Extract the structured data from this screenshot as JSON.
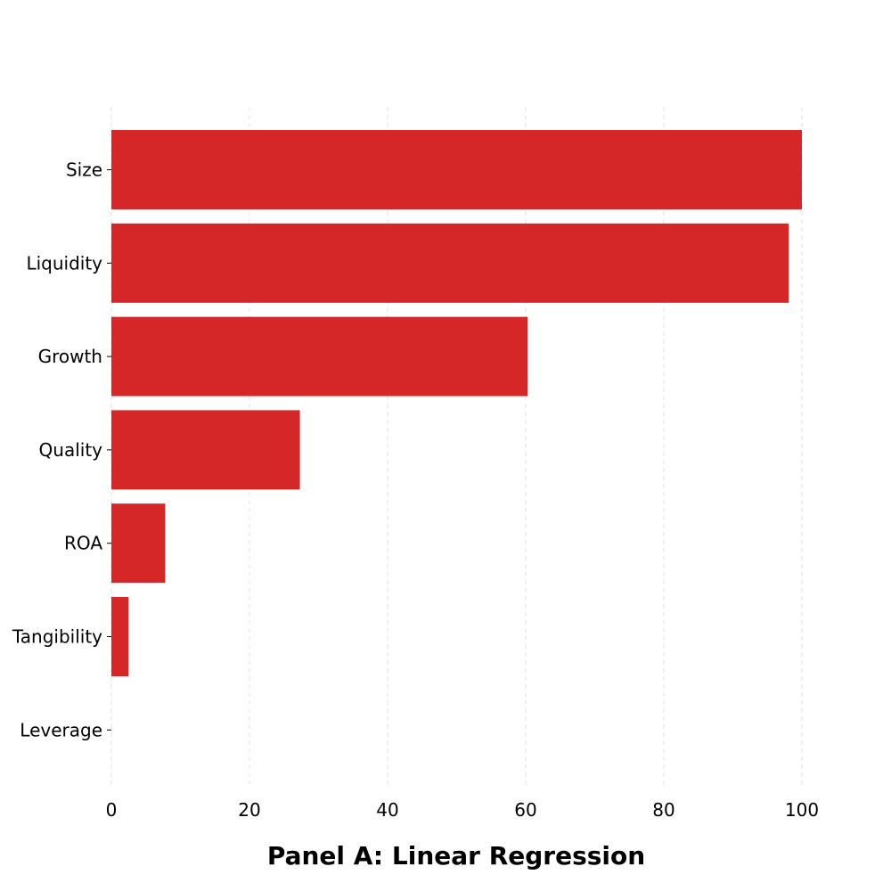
{
  "chart_data": {
    "type": "bar",
    "orientation": "horizontal",
    "title": "Panel A: Linear Regression",
    "categories": [
      "Size",
      "Liquidity",
      "Growth",
      "Quality",
      "ROA",
      "Tangibility",
      "Leverage"
    ],
    "values": [
      100,
      98.1,
      60.3,
      27.3,
      7.8,
      2.5,
      0
    ],
    "xlim": [
      0,
      100
    ],
    "xticks": [
      "0",
      "20",
      "40",
      "60",
      "80",
      "100"
    ],
    "grid": "vertical dashed, faint",
    "bar_color": "#d62728"
  }
}
